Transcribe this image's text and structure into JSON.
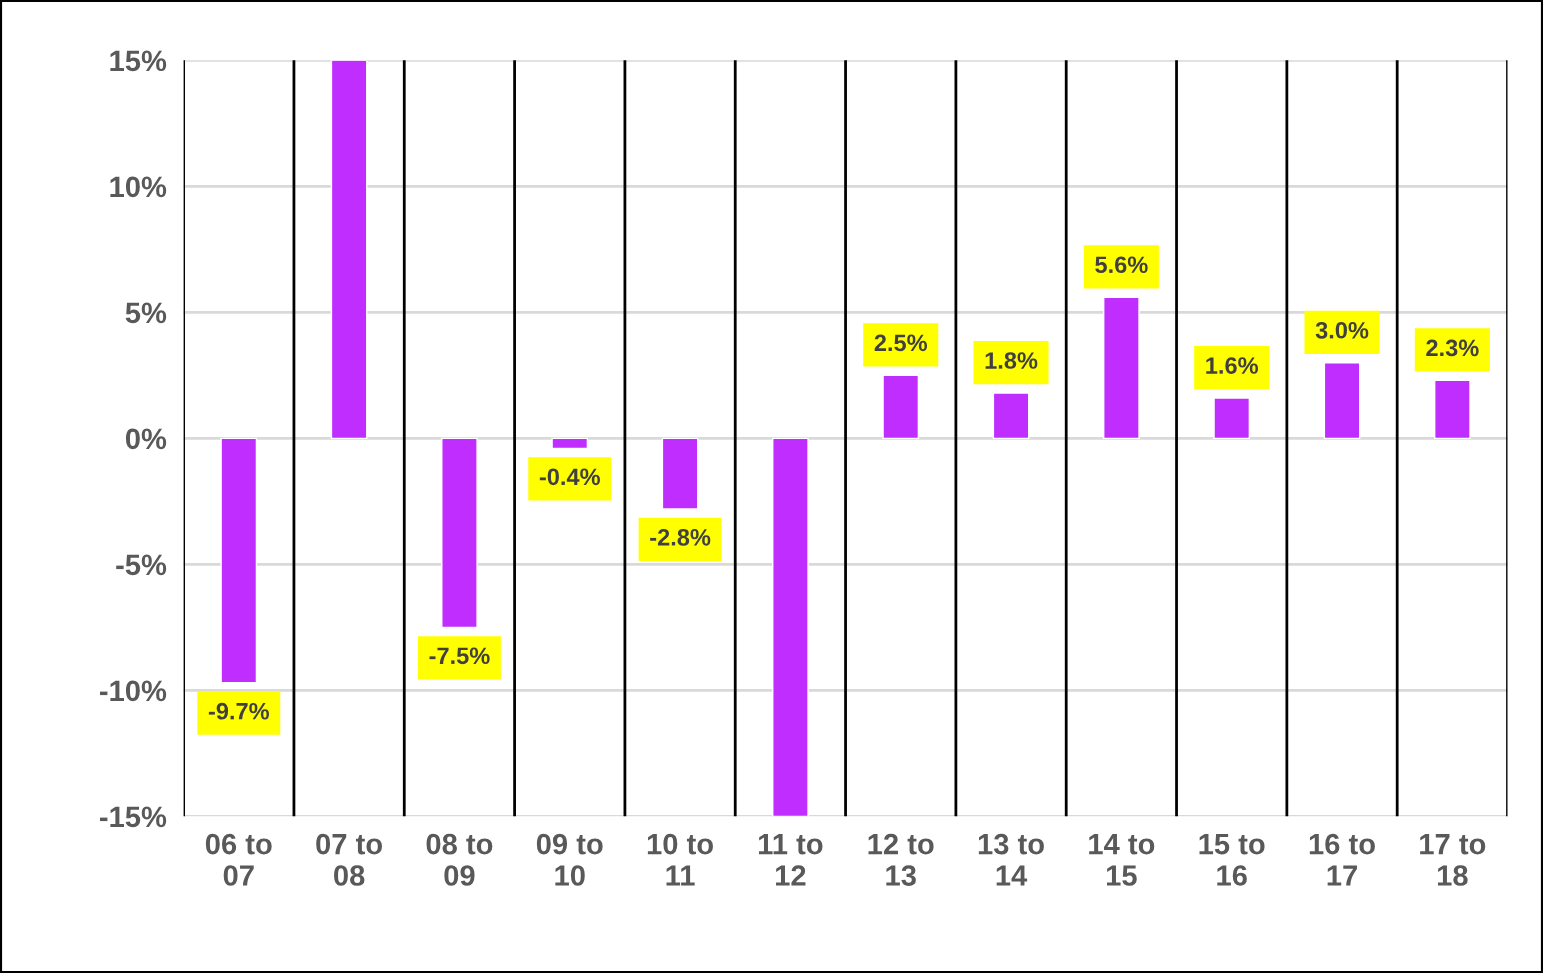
{
  "chart_data": {
    "type": "bar",
    "categories": [
      "06 to\n07",
      "07 to\n08",
      "08 to\n09",
      "09 to\n10",
      "10 to\n11",
      "11 to\n12",
      "12 to\n13",
      "13 to\n14",
      "14 to\n15",
      "15 to\n16",
      "16 to\n17",
      "17 to\n18"
    ],
    "values": [
      -9.7,
      15,
      -7.5,
      -0.4,
      -2.8,
      -15,
      2.5,
      1.8,
      5.6,
      1.6,
      3.0,
      2.3
    ],
    "value_labels": [
      "-9.7%",
      null,
      "-7.5%",
      "-0.4%",
      "-2.8%",
      null,
      "2.5%",
      "1.8%",
      "5.6%",
      "1.6%",
      "3.0%",
      "2.3%"
    ],
    "color": "#bf2eff",
    "ylim": [
      -15,
      15
    ],
    "yticks": [
      {
        "value": -15,
        "label": "-15%"
      },
      {
        "value": -10,
        "label": "-10%"
      },
      {
        "value": -5,
        "label": "-5%"
      },
      {
        "value": 0,
        "label": "0%"
      },
      {
        "value": 5,
        "label": "5%"
      },
      {
        "value": 10,
        "label": "10%"
      },
      {
        "value": 15,
        "label": "15%"
      }
    ],
    "grid": true,
    "legend": false
  }
}
